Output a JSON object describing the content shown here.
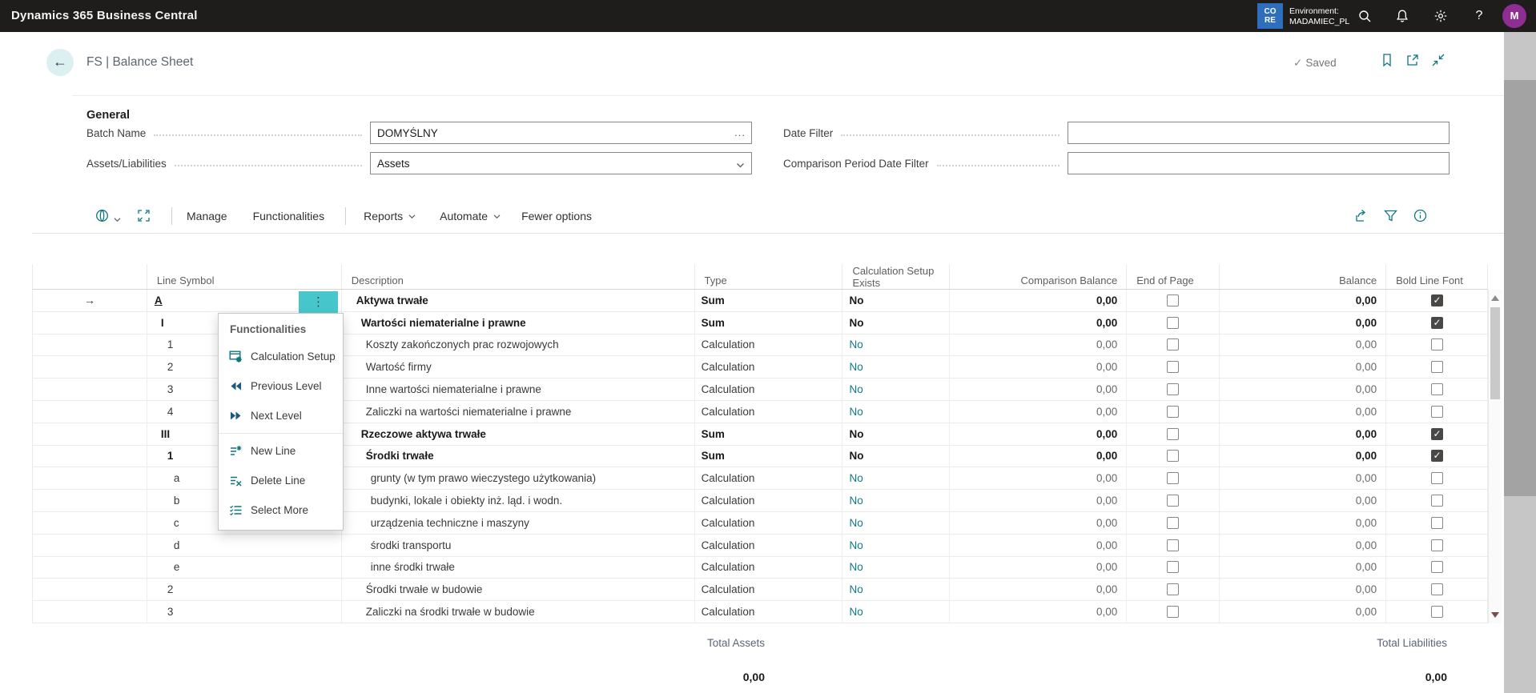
{
  "topbar": {
    "app_title": "Dynamics 365 Business Central",
    "environment": {
      "badge": "CORE",
      "label": "Environment:",
      "name": "MADAMIEC_PL"
    },
    "avatar_initial": "M"
  },
  "page_header": {
    "title": "FS | Balance Sheet",
    "save_status": "Saved"
  },
  "general": {
    "section_title": "General",
    "fields": [
      {
        "label": "Batch Name",
        "value": "DOMYŚLNY",
        "control": "assist-edit"
      },
      {
        "label": "Assets/Liabilities",
        "value": "Assets",
        "control": "dropdown"
      },
      {
        "label": "Date Filter",
        "value": "",
        "control": "text"
      },
      {
        "label": "Comparison Period Date Filter",
        "value": "",
        "control": "text"
      }
    ],
    "assist_edit_glyph": "..."
  },
  "toolbar": {
    "manage": "Manage",
    "functionalities": "Functionalities",
    "reports": "Reports",
    "automate": "Automate",
    "fewer_options": "Fewer options"
  },
  "table": {
    "columns": [
      "Line Symbol",
      "Description",
      "Type",
      "Calculation Setup Exists",
      "Comparison Balance",
      "End of Page",
      "Balance",
      "Bold Line Font"
    ],
    "rows": [
      {
        "symbol": "A",
        "symbol_level": 0,
        "description": "Aktywa trwałe",
        "description_level": 0,
        "type": "Sum",
        "calc_exists": "No",
        "comparison_balance": "0,00",
        "end_of_page": false,
        "balance": "0,00",
        "bold_line_font": true,
        "bold": true,
        "selected": true
      },
      {
        "symbol": "I",
        "symbol_level": 1,
        "description": "Wartości niematerialne i prawne",
        "description_level": 1,
        "type": "Sum",
        "calc_exists": "No",
        "comparison_balance": "0,00",
        "end_of_page": false,
        "balance": "0,00",
        "bold_line_font": true,
        "bold": true,
        "selected": false
      },
      {
        "symbol": "1",
        "symbol_level": 2,
        "description": "Koszty zakończonych prac rozwojowych",
        "description_level": 2,
        "type": "Calculation",
        "calc_exists": "No",
        "comparison_balance": "0,00",
        "end_of_page": false,
        "balance": "0,00",
        "bold_line_font": false,
        "bold": false,
        "selected": false
      },
      {
        "symbol": "2",
        "symbol_level": 2,
        "description": "Wartość firmy",
        "description_level": 2,
        "type": "Calculation",
        "calc_exists": "No",
        "comparison_balance": "0,00",
        "end_of_page": false,
        "balance": "0,00",
        "bold_line_font": false,
        "bold": false,
        "selected": false
      },
      {
        "symbol": "3",
        "symbol_level": 2,
        "description": "Inne wartości niematerialne i prawne",
        "description_level": 2,
        "type": "Calculation",
        "calc_exists": "No",
        "comparison_balance": "0,00",
        "end_of_page": false,
        "balance": "0,00",
        "bold_line_font": false,
        "bold": false,
        "selected": false
      },
      {
        "symbol": "4",
        "symbol_level": 2,
        "description": "Zaliczki na wartości niematerialne i prawne",
        "description_level": 2,
        "type": "Calculation",
        "calc_exists": "No",
        "comparison_balance": "0,00",
        "end_of_page": false,
        "balance": "0,00",
        "bold_line_font": false,
        "bold": false,
        "selected": false
      },
      {
        "symbol": "III",
        "symbol_level": 1,
        "description": "Rzeczowe aktywa trwałe",
        "description_level": 1,
        "type": "Sum",
        "calc_exists": "No",
        "comparison_balance": "0,00",
        "end_of_page": false,
        "balance": "0,00",
        "bold_line_font": true,
        "bold": true,
        "selected": false
      },
      {
        "symbol": "1",
        "symbol_level": 2,
        "description": "Środki trwałe",
        "description_level": 2,
        "type": "Sum",
        "calc_exists": "No",
        "comparison_balance": "0,00",
        "end_of_page": false,
        "balance": "0,00",
        "bold_line_font": true,
        "bold": true,
        "selected": false
      },
      {
        "symbol": "a",
        "symbol_level": 3,
        "description": "grunty (w tym prawo wieczystego użytkowania)",
        "description_level": 3,
        "type": "Calculation",
        "calc_exists": "No",
        "comparison_balance": "0,00",
        "end_of_page": false,
        "balance": "0,00",
        "bold_line_font": false,
        "bold": false,
        "selected": false
      },
      {
        "symbol": "b",
        "symbol_level": 3,
        "description": "budynki, lokale i obiekty inż. ląd. i wodn.",
        "description_level": 3,
        "type": "Calculation",
        "calc_exists": "No",
        "comparison_balance": "0,00",
        "end_of_page": false,
        "balance": "0,00",
        "bold_line_font": false,
        "bold": false,
        "selected": false
      },
      {
        "symbol": "c",
        "symbol_level": 3,
        "description": "urządzenia techniczne i maszyny",
        "description_level": 3,
        "type": "Calculation",
        "calc_exists": "No",
        "comparison_balance": "0,00",
        "end_of_page": false,
        "balance": "0,00",
        "bold_line_font": false,
        "bold": false,
        "selected": false
      },
      {
        "symbol": "d",
        "symbol_level": 3,
        "description": "środki transportu",
        "description_level": 3,
        "type": "Calculation",
        "calc_exists": "No",
        "comparison_balance": "0,00",
        "end_of_page": false,
        "balance": "0,00",
        "bold_line_font": false,
        "bold": false,
        "selected": false
      },
      {
        "symbol": "e",
        "symbol_level": 3,
        "description": "inne środki trwałe",
        "description_level": 3,
        "type": "Calculation",
        "calc_exists": "No",
        "comparison_balance": "0,00",
        "end_of_page": false,
        "balance": "0,00",
        "bold_line_font": false,
        "bold": false,
        "selected": false
      },
      {
        "symbol": "2",
        "symbol_level": 2,
        "description": "Środki trwałe w budowie",
        "description_level": 2,
        "type": "Calculation",
        "calc_exists": "No",
        "comparison_balance": "0,00",
        "end_of_page": false,
        "balance": "0,00",
        "bold_line_font": false,
        "bold": false,
        "selected": false
      },
      {
        "symbol": "3",
        "symbol_level": 2,
        "description": "Zaliczki na środki trwałe w budowie",
        "description_level": 2,
        "type": "Calculation",
        "calc_exists": "No",
        "comparison_balance": "0,00",
        "end_of_page": false,
        "balance": "0,00",
        "bold_line_font": false,
        "bold": false,
        "selected": false
      }
    ]
  },
  "context_menu": {
    "title": "Functionalities",
    "items": [
      {
        "label": "Calculation Setup",
        "icon": "calculation-setup-icon"
      },
      {
        "label": "Previous Level",
        "icon": "previous-level-icon"
      },
      {
        "label": "Next Level",
        "icon": "next-level-icon"
      },
      {
        "label": "New Line",
        "icon": "new-line-icon"
      },
      {
        "label": "Delete Line",
        "icon": "delete-line-icon"
      },
      {
        "label": "Select More",
        "icon": "select-more-icon"
      }
    ],
    "ellipsis_glyph": "⋮"
  },
  "footer": {
    "total_assets_label": "Total Assets",
    "total_assets_value": "0,00",
    "total_liabilities_label": "Total Liabilities",
    "total_liabilities_value": "0,00"
  },
  "colors": {
    "accent_teal": "#0d7680",
    "selection_teal": "#47c7cc",
    "environment_badge_blue": "#2f6dbd",
    "avatar_purple": "#8f2e92",
    "topbar_black": "#1e1d1c"
  }
}
